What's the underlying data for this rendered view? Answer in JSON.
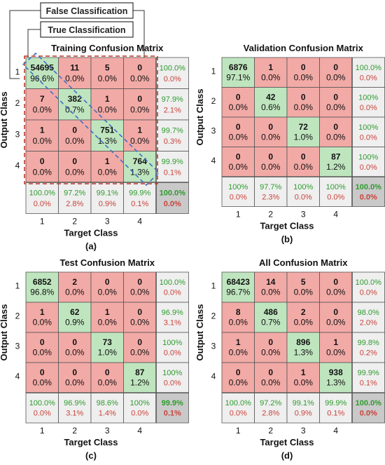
{
  "legend": {
    "false_label": "False Classification",
    "true_label": "True Classification"
  },
  "colors": {
    "correct": "#bfe5bf",
    "wrong": "#f2aaa6",
    "summary": "#efefef",
    "total": "#c9c9c9",
    "green_text": "#2e9b2e",
    "red_text": "#c9433b",
    "line": "#555555",
    "false_marker": "#c0392b",
    "true_marker": "#3f6fc6"
  },
  "chart_data": [
    {
      "type": "heatmap",
      "title": "Training Confusion Matrix",
      "xlabel": "Target Class",
      "ylabel": "Output Class",
      "panel_label": "(a)",
      "classes": [
        "1",
        "2",
        "3",
        "4"
      ],
      "counts": [
        [
          54695,
          11,
          5,
          0
        ],
        [
          7,
          382,
          1,
          0
        ],
        [
          1,
          0,
          751,
          1
        ],
        [
          0,
          0,
          1,
          764
        ]
      ],
      "percents": [
        [
          "96.6%",
          "0.0%",
          "0.0%",
          "0.0%"
        ],
        [
          "0.0%",
          "0.7%",
          "0.0%",
          "0.0%"
        ],
        [
          "0.0%",
          "0.0%",
          "1.3%",
          "0.0%"
        ],
        [
          "0.0%",
          "0.0%",
          "0.0%",
          "1.3%"
        ]
      ],
      "row_summary": [
        [
          "100.0%",
          "0.0%"
        ],
        [
          "97.9%",
          "2.1%"
        ],
        [
          "99.7%",
          "0.3%"
        ],
        [
          "99.9%",
          "0.1%"
        ]
      ],
      "col_summary": [
        [
          "100.0%",
          "0.0%"
        ],
        [
          "97.2%",
          "2.8%"
        ],
        [
          "99.1%",
          "0.9%"
        ],
        [
          "99.9%",
          "0.1%"
        ]
      ],
      "total": [
        "100.0%",
        "0.0%"
      ]
    },
    {
      "type": "heatmap",
      "title": "Validation Confusion Matrix",
      "xlabel": "Target Class",
      "ylabel": "Output Class",
      "panel_label": "(b)",
      "classes": [
        "1",
        "2",
        "3",
        "4"
      ],
      "counts": [
        [
          6876,
          1,
          0,
          0
        ],
        [
          0,
          42,
          0,
          0
        ],
        [
          0,
          0,
          72,
          0
        ],
        [
          0,
          0,
          0,
          87
        ]
      ],
      "percents": [
        [
          "97.1%",
          "0.0%",
          "0.0%",
          "0.0%"
        ],
        [
          "0.0%",
          "0.6%",
          "0.0%",
          "0.0%"
        ],
        [
          "0.0%",
          "0.0%",
          "1.0%",
          "0.0%"
        ],
        [
          "0.0%",
          "0.0%",
          "0.0%",
          "1.2%"
        ]
      ],
      "row_summary": [
        [
          "100.0%",
          "0.0%"
        ],
        [
          "100%",
          "0.0%"
        ],
        [
          "100%",
          "0.0%"
        ],
        [
          "100%",
          "0.0%"
        ]
      ],
      "col_summary": [
        [
          "100%",
          "0.0%"
        ],
        [
          "97.7%",
          "2.3%"
        ],
        [
          "100%",
          "0.0%"
        ],
        [
          "100%",
          "0.0%"
        ]
      ],
      "total": [
        "100.0%",
        "0.0%"
      ]
    },
    {
      "type": "heatmap",
      "title": "Test Confusion Matrix",
      "xlabel": "Target Class",
      "ylabel": "Output Class",
      "panel_label": "(c)",
      "classes": [
        "1",
        "2",
        "3",
        "4"
      ],
      "counts": [
        [
          6852,
          2,
          0,
          0
        ],
        [
          1,
          62,
          1,
          0
        ],
        [
          0,
          0,
          73,
          0
        ],
        [
          0,
          0,
          0,
          87
        ]
      ],
      "percents": [
        [
          "96.8%",
          "0.0%",
          "0.0%",
          "0.0%"
        ],
        [
          "0.0%",
          "0.9%",
          "0.0%",
          "0.0%"
        ],
        [
          "0.0%",
          "0.0%",
          "1.0%",
          "0.0%"
        ],
        [
          "0.0%",
          "0.0%",
          "0.0%",
          "1.2%"
        ]
      ],
      "row_summary": [
        [
          "100.0%",
          "0.0%"
        ],
        [
          "96.9%",
          "3.1%"
        ],
        [
          "100%",
          "0.0%"
        ],
        [
          "100%",
          "0.0%"
        ]
      ],
      "col_summary": [
        [
          "100.0%",
          "0.0%"
        ],
        [
          "96.9%",
          "3.1%"
        ],
        [
          "98.6%",
          "1.4%"
        ],
        [
          "100%",
          "0.0%"
        ]
      ],
      "total": [
        "99.9%",
        "0.1%"
      ]
    },
    {
      "type": "heatmap",
      "title": "All Confusion Matrix",
      "xlabel": "Target Class",
      "ylabel": "Output Class",
      "panel_label": "(d)",
      "classes": [
        "1",
        "2",
        "3",
        "4"
      ],
      "counts": [
        [
          68423,
          14,
          5,
          0
        ],
        [
          8,
          486,
          2,
          0
        ],
        [
          1,
          0,
          896,
          1
        ],
        [
          0,
          0,
          1,
          938
        ]
      ],
      "percents": [
        [
          "96.7%",
          "0.0%",
          "0.0%",
          "0.0%"
        ],
        [
          "0.0%",
          "0.7%",
          "0.0%",
          "0.0%"
        ],
        [
          "0.0%",
          "0.0%",
          "1.3%",
          "0.0%"
        ],
        [
          "0.0%",
          "0.0%",
          "0.0%",
          "1.3%"
        ]
      ],
      "row_summary": [
        [
          "100.0%",
          "0.0%"
        ],
        [
          "98.0%",
          "2.0%"
        ],
        [
          "99.8%",
          "0.2%"
        ],
        [
          "99.9%",
          "0.1%"
        ]
      ],
      "col_summary": [
        [
          "100.0%",
          "0.0%"
        ],
        [
          "97.2%",
          "2.8%"
        ],
        [
          "99.1%",
          "0.9%"
        ],
        [
          "99.9%",
          "0.1%"
        ]
      ],
      "total": [
        "100.0%",
        "0.0%"
      ]
    }
  ]
}
